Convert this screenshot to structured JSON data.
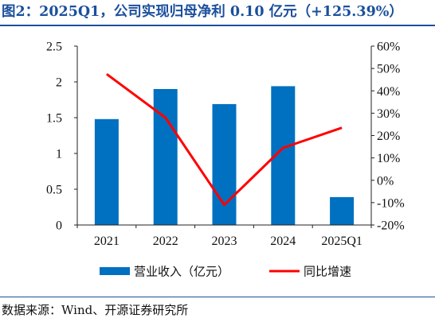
{
  "title": "图2：2025Q1，公司实现归母净利 0.10 亿元（+125.39%）",
  "source": "数据来源：Wind、开源证券研究所",
  "chart_data": {
    "type": "bar",
    "categories": [
      "2021",
      "2022",
      "2023",
      "2024",
      "2025Q1"
    ],
    "series": [
      {
        "name": "营业收入（亿元）",
        "type": "bar",
        "axis": "left",
        "color": "#0070c0",
        "values": [
          1.48,
          1.9,
          1.69,
          1.94,
          0.39
        ]
      },
      {
        "name": "同比增速",
        "type": "line",
        "axis": "right",
        "color": "#ff0000",
        "values": [
          47.5,
          28.0,
          -11.0,
          14.5,
          23.5
        ]
      }
    ],
    "left_axis": {
      "ylim": [
        0,
        2.5
      ],
      "ticks": [
        "0",
        "0.5",
        "1",
        "1.5",
        "2",
        "2.5"
      ]
    },
    "right_axis": {
      "ylim": [
        -20,
        60
      ],
      "ticks": [
        "-20%",
        "-10%",
        "0%",
        "10%",
        "20%",
        "30%",
        "40%",
        "50%",
        "60%"
      ]
    },
    "grid": false,
    "legend": "bottom"
  }
}
